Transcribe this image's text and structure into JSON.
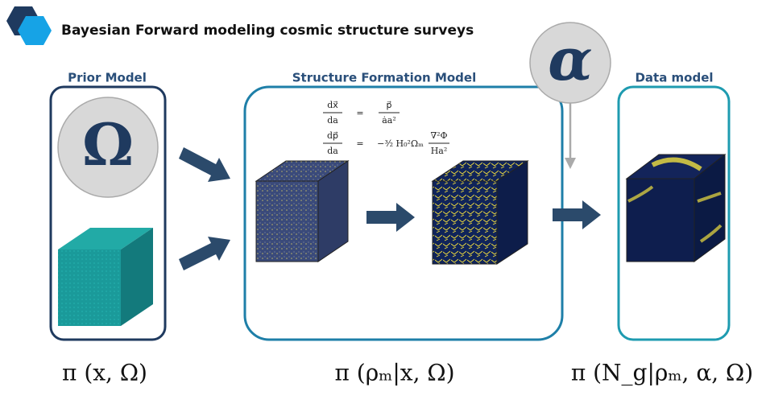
{
  "header": {
    "title": "Bayesian Forward modeling cosmic structure surveys"
  },
  "panels": [
    {
      "label": "Prior Model",
      "symbol": "Ω",
      "formula": "π (x, Ω)"
    },
    {
      "label": "Structure Formation Model",
      "equations": [
        {
          "lhs": [
            "dx⃗",
            "da"
          ],
          "relation": "=",
          "rhs": [
            "p⃗",
            "ȧa²"
          ]
        },
        {
          "lhs": [
            "dp⃗",
            "da"
          ],
          "relation": "=",
          "prefix": "−³⁄₂ H₀²Ωₘ",
          "rhs": [
            "∇²Φ",
            "Ha²"
          ]
        }
      ],
      "formula": "π (ρₘ|x, Ω)"
    },
    {
      "label": "Data model",
      "formula": "π (N_g|ρₘ, α, Ω)"
    }
  ],
  "parameter": {
    "symbol": "α"
  }
}
